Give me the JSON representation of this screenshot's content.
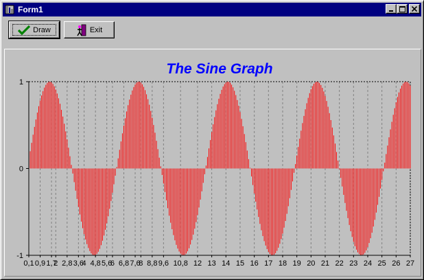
{
  "window": {
    "title": "Form1",
    "icon": "form-icon",
    "controls": [
      "minimize-icon",
      "maximize-icon",
      "close-icon"
    ]
  },
  "toolbar": {
    "draw_label": "Draw",
    "draw_icon": "checkmark-icon",
    "exit_label": "Exit",
    "exit_icon": "exit-door-icon"
  },
  "chart_data": {
    "type": "bar",
    "title": "The Sine Graph",
    "xlabel": "",
    "ylabel": "",
    "ylim": [
      -1,
      1
    ],
    "xlim": [
      0.1,
      27
    ],
    "y_ticks": [
      "1",
      "0",
      "-1"
    ],
    "x_tick_labels": [
      "0,1",
      "0,9",
      "1,7",
      "2",
      "2,8",
      "3,6",
      "4",
      "4,8",
      "5,6",
      "6",
      "6,8",
      "7,6",
      "8",
      "8,8",
      "9,6",
      "10,8",
      "12",
      "13",
      "14",
      "15",
      "16",
      "17",
      "18",
      "19",
      "20",
      "21",
      "22",
      "23",
      "24",
      "25",
      "26",
      "27"
    ],
    "x_tick_positions": [
      0.1,
      0.9,
      1.7,
      2.0,
      2.8,
      3.6,
      4.0,
      4.8,
      5.6,
      6.0,
      6.8,
      7.6,
      8.0,
      8.8,
      9.6,
      10.8,
      12,
      13,
      14,
      15,
      16,
      17,
      18,
      19,
      20,
      21,
      22,
      23,
      24,
      25,
      26,
      27
    ],
    "function": "y = sin(x), sampled every 0.1 from 0.1 to 27",
    "x_step": 0.1,
    "bar_color": "#ff0000",
    "title_color": "#0000ff",
    "grid": true,
    "legend": "none"
  }
}
